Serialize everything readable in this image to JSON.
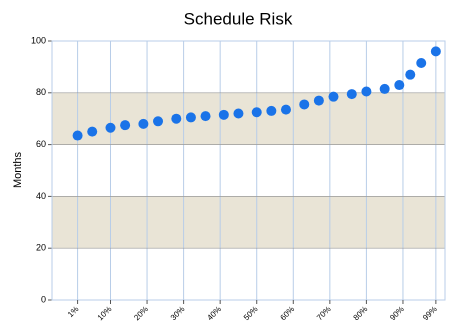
{
  "chart_data": {
    "type": "scatter",
    "title": "Schedule Risk",
    "y_label": "Months",
    "x": [
      1,
      5,
      10,
      14,
      19,
      23,
      28,
      32,
      36,
      41,
      45,
      50,
      54,
      58,
      63,
      67,
      71,
      76,
      80,
      85,
      89,
      92,
      95,
      99
    ],
    "series": [
      {
        "color": "#1a73e8",
        "values": [
          63.5,
          65,
          66.5,
          67.5,
          68,
          69,
          70,
          70.5,
          71,
          71.5,
          72,
          72.5,
          73,
          73.5,
          75.5,
          77,
          78.5,
          79.5,
          80.5,
          81.5,
          83,
          87,
          91.5,
          96
        ]
      }
    ],
    "xlim": [
      -6,
      101.5
    ],
    "ylim": [
      0,
      100
    ],
    "xticks": [
      {
        "value": 1,
        "label": "1%"
      },
      {
        "value": 10,
        "label": "10%"
      },
      {
        "value": 20,
        "label": "20%"
      },
      {
        "value": 30,
        "label": "30%"
      },
      {
        "value": 40,
        "label": "40%"
      },
      {
        "value": 50,
        "label": "50%"
      },
      {
        "value": 60,
        "label": "60%"
      },
      {
        "value": 70,
        "label": "70%"
      },
      {
        "value": 80,
        "label": "80%"
      },
      {
        "value": 90,
        "label": "90%"
      },
      {
        "value": 99,
        "label": "99%"
      }
    ],
    "yticks": [
      0,
      20,
      40,
      60,
      80,
      100
    ],
    "grid": true
  }
}
